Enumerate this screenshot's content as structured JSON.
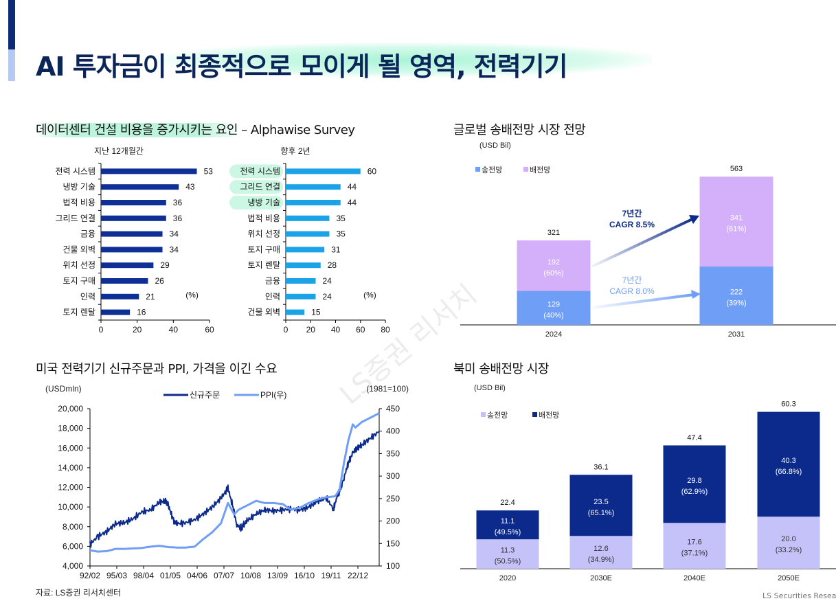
{
  "page": {
    "title": "AI 투자금이 최종적으로 모이게 될 영역, 전력기기",
    "source_note": "자료: LS증권 리서치센터",
    "footer_brand": "LS Securities  Resear",
    "watermark": "LS증권 리서치"
  },
  "colors": {
    "dark_blue": "#0e2f96",
    "sky_blue": "#1aa3e6",
    "light_blue": "#6f9ef6",
    "lavender": "#d5b0fa",
    "pale_lavender": "#c4c2f8",
    "navy": "#0b2a8c",
    "title_navy": "#0c2558"
  },
  "sections": {
    "survey_title_highlight": "데이터센터 건설 비용을 증가시키는 요인",
    "survey_title_rest": " – Alphawise Survey",
    "grid_title": "글로벌 송배전망 시장 전망",
    "line_title": "미국 전력기기 신규주문과 PPI, 가격을 이긴 수요",
    "na_title": "북미 송배전망 시장"
  },
  "chart_data": [
    {
      "id": "survey_past",
      "type": "bar",
      "orientation": "horizontal",
      "title": "지난 12개월간",
      "unit_label": "(%)",
      "categories": [
        "전력 시스템",
        "냉방 기술",
        "법적 비용",
        "그리드 연결",
        "금융",
        "건물 외벽",
        "위치 선정",
        "토지 구매",
        "인력",
        "토지 렌탈"
      ],
      "values": [
        53,
        43,
        36,
        36,
        34,
        34,
        29,
        26,
        21,
        16
      ],
      "xlim": [
        0,
        60
      ],
      "xticks": [
        "0",
        "20",
        "40",
        "60"
      ],
      "color": "#0e2f96"
    },
    {
      "id": "survey_next",
      "type": "bar",
      "orientation": "horizontal",
      "title": "향후 2년",
      "unit_label": "(%)",
      "categories": [
        "전력 시스템",
        "그리드 연결",
        "냉방 기술",
        "법적 비용",
        "위치 선정",
        "토지 구매",
        "토지 렌탈",
        "금융",
        "인력",
        "건물 외벽"
      ],
      "highlighted": [
        "전력 시스템",
        "그리드 연결",
        "냉방 기술"
      ],
      "values": [
        60,
        44,
        44,
        35,
        35,
        31,
        28,
        24,
        24,
        15
      ],
      "xlim": [
        0,
        80
      ],
      "xticks": [
        "0",
        "20",
        "40",
        "60",
        "80"
      ],
      "color": "#1aa3e6"
    },
    {
      "id": "global_grid",
      "type": "bar",
      "stacked": true,
      "title": "글로벌 송배전망 시장 전망",
      "unit": "(USD Bil)",
      "categories": [
        "2024",
        "2031"
      ],
      "series": [
        {
          "name": "송전망",
          "values": [
            129,
            222
          ],
          "labels": [
            "129",
            "222"
          ],
          "pct": [
            "(40%)",
            "(39%)"
          ],
          "color": "#6f9ef6"
        },
        {
          "name": "배전망",
          "values": [
            192,
            341
          ],
          "labels": [
            "192",
            "341"
          ],
          "pct": [
            "(60%)",
            "(61%)"
          ],
          "color": "#d5b0fa"
        }
      ],
      "totals": [
        "321",
        "563"
      ],
      "ylim": [
        0,
        600
      ],
      "legend": "top-left",
      "annotations": [
        {
          "line1": "7년간",
          "line2": "CAGR 8.5%",
          "series": "배전망"
        },
        {
          "line1": "7년간",
          "line2": "CAGR 8.0%",
          "series": "송전망"
        }
      ]
    },
    {
      "id": "us_orders_ppi",
      "type": "line",
      "title": "미국 전력기기 신규주문과 PPI, 가격을 이긴 수요",
      "ylabel_left": "(USDmln)",
      "ylabel_right": "(1981=100)",
      "ylim_left": [
        4000,
        20000
      ],
      "ylim_right": [
        100,
        450
      ],
      "yticks_left": [
        "4,000",
        "6,000",
        "8,000",
        "10,000",
        "12,000",
        "14,000",
        "16,000",
        "18,000",
        "20,000"
      ],
      "yticks_right": [
        "100",
        "150",
        "200",
        "250",
        "300",
        "350",
        "400",
        "450"
      ],
      "xticks": [
        "92/02",
        "95/03",
        "98/04",
        "01/05",
        "04/06",
        "07/07",
        "10/08",
        "13/09",
        "16/10",
        "19/11",
        "22/12"
      ],
      "legend": "top-center",
      "series": [
        {
          "name": "신규주문",
          "axis": "left",
          "color": "#0b2a8c",
          "x": [
            1992.1,
            1993,
            1994,
            1995,
            1996,
            1997,
            1998,
            1999,
            2000,
            2000.7,
            2001,
            2001.6,
            2002,
            2003,
            2004,
            2005,
            2006,
            2007,
            2007.8,
            2008.3,
            2008.8,
            2009.3,
            2009.6,
            2010,
            2011,
            2012,
            2013,
            2014,
            2015,
            2016,
            2017,
            2018,
            2019,
            2019.8,
            2020.2,
            2020.5,
            2021,
            2021.5,
            2022,
            2022.5,
            2023,
            2024,
            2025
          ],
          "y": [
            6200,
            7000,
            7500,
            8300,
            8400,
            8800,
            9500,
            9700,
            10500,
            10600,
            10200,
            8600,
            8300,
            8400,
            8700,
            9300,
            10000,
            10900,
            11900,
            10200,
            8200,
            7800,
            8200,
            8600,
            9300,
            9700,
            9600,
            9700,
            9800,
            9700,
            10000,
            10600,
            10900,
            9800,
            11000,
            11600,
            13000,
            14500,
            15500,
            16000,
            16300,
            17000,
            17700
          ]
        },
        {
          "name": "PPI(우)",
          "axis": "right",
          "color": "#6f9ef6",
          "x": [
            1992.1,
            1993,
            1994,
            1995,
            1996,
            1997,
            1998,
            1999,
            2000,
            2001,
            2002,
            2003,
            2004,
            2005,
            2006,
            2007,
            2007.8,
            2008.5,
            2009,
            2010,
            2011,
            2012,
            2013,
            2014,
            2015,
            2016,
            2017,
            2018,
            2019,
            2020,
            2020.5,
            2021,
            2021.5,
            2022,
            2022.3,
            2023,
            2024,
            2025
          ],
          "y": [
            135,
            132,
            133,
            138,
            138,
            139,
            140,
            143,
            145,
            142,
            141,
            141,
            143,
            160,
            175,
            195,
            240,
            215,
            225,
            235,
            245,
            240,
            240,
            238,
            225,
            230,
            240,
            248,
            253,
            255,
            270,
            330,
            380,
            415,
            408,
            420,
            430,
            440
          ]
        }
      ]
    },
    {
      "id": "na_grid",
      "type": "bar",
      "stacked": true,
      "title": "북미 송배전망 시장",
      "unit": "(USD Bil)",
      "categories": [
        "2020",
        "2030E",
        "2040E",
        "2050E"
      ],
      "series": [
        {
          "name": "송전망",
          "values": [
            11.3,
            12.6,
            17.6,
            20.0
          ],
          "labels": [
            "11.3",
            "12.6",
            "17.6",
            "20.0"
          ],
          "pct": [
            "(50.5%)",
            "(34.9%)",
            "(37.1%)",
            "(33.2%)"
          ],
          "color": "#c4c2f8"
        },
        {
          "name": "배전망",
          "values": [
            11.1,
            23.5,
            29.8,
            40.3
          ],
          "labels": [
            "11.1",
            "23.5",
            "29.8",
            "40.3"
          ],
          "pct": [
            "(49.5%)",
            "(65.1%)",
            "(62.9%)",
            "(66.8%)"
          ],
          "color": "#0b2a8c"
        }
      ],
      "totals": [
        "22.4",
        "36.1",
        "47.4",
        "60.3"
      ],
      "ylim": [
        0,
        66
      ],
      "legend": "top-left"
    }
  ]
}
